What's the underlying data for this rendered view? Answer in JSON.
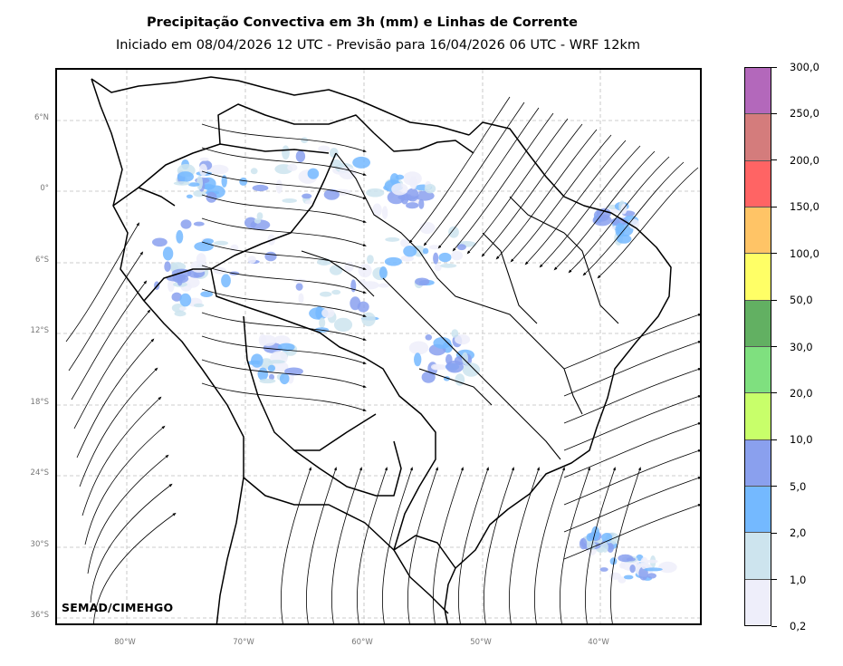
{
  "title": "Precipitação Convectiva em 3h (mm) e Linhas de Corrente",
  "subtitle": "Iniciado em 08/04/2026 12 UTC - Previsão para 16/04/2026 06 UTC - WRF 12km",
  "credit": "SEMAD/CIMEHGO",
  "map": {
    "lat_labels": [
      "6°N",
      "0°",
      "6°S",
      "12°S",
      "18°S",
      "24°S",
      "30°S",
      "36°S"
    ],
    "lon_labels": [
      "80°W",
      "70°W",
      "60°W",
      "50°W",
      "40°W"
    ],
    "gridlines": true
  },
  "colorbar": {
    "levels": [
      "0,2",
      "1,0",
      "2,0",
      "5,0",
      "10,0",
      "20,0",
      "30,0",
      "50,0",
      "100,0",
      "150,0",
      "200,0",
      "250,0",
      "300,0"
    ],
    "colors": [
      "#eeeefa",
      "#cde4ee",
      "#74b9ff",
      "#8aa0ee",
      "#c8ff6a",
      "#7fe07f",
      "#62b062",
      "#ffff66",
      "#ffc466",
      "#ff6464",
      "#d47c7c",
      "#b368bb"
    ]
  }
}
